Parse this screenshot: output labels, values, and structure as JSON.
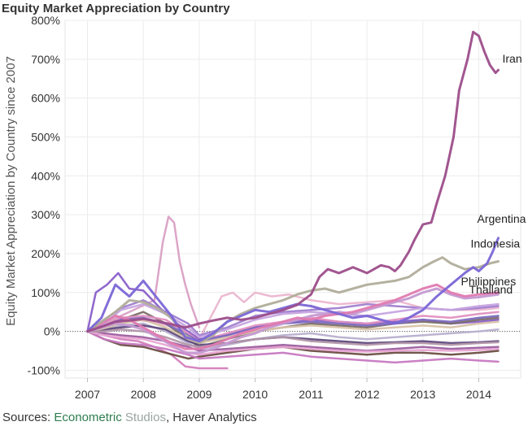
{
  "title": "Equity Market Appreciation by Country",
  "source": {
    "prefix": "Sources: ",
    "part1": "Econometric",
    "part2": " Studios",
    "part3": ", Haver Analytics",
    "colors": {
      "prefix": "#333333",
      "part1": "#2e7d4f",
      "part2": "#9aa6a0",
      "part3": "#333333"
    }
  },
  "chart_data": {
    "type": "line",
    "title": "Equity Market Appreciation by Country",
    "xlabel": "",
    "ylabel": "Equity Market Appreciation by Country since 2007",
    "xlim": [
      2006.6,
      2014.75
    ],
    "ylim": [
      -120,
      800
    ],
    "x_ticks": [
      2007,
      2008,
      2009,
      2010,
      2011,
      2012,
      2013,
      2014
    ],
    "y_ticks": [
      -100,
      0,
      100,
      200,
      300,
      400,
      500,
      600,
      700,
      800
    ],
    "y_tick_labels": [
      "-100%",
      "0%",
      "100%",
      "200%",
      "300%",
      "400%",
      "500%",
      "600%",
      "700%",
      "800%"
    ],
    "grid": true,
    "baseline": 0,
    "series": [
      {
        "name": "Iran",
        "color": "#9c4d8a",
        "x": [
          2007,
          2007.25,
          2007.5,
          2007.75,
          2008,
          2008.25,
          2008.5,
          2008.75,
          2009,
          2009.25,
          2009.5,
          2009.75,
          2010,
          2010.25,
          2010.5,
          2010.75,
          2011,
          2011.15,
          2011.3,
          2011.5,
          2011.75,
          2012,
          2012.25,
          2012.4,
          2012.5,
          2012.6,
          2012.75,
          2012.85,
          2013,
          2013.15,
          2013.25,
          2013.4,
          2013.55,
          2013.65,
          2013.8,
          2013.9,
          2014,
          2014.1,
          2014.2,
          2014.3,
          2014.35
        ],
        "values": [
          0,
          12,
          25,
          28,
          32,
          26,
          18,
          10,
          20,
          28,
          35,
          30,
          35,
          45,
          55,
          68,
          95,
          140,
          160,
          150,
          165,
          150,
          170,
          165,
          155,
          170,
          205,
          235,
          275,
          280,
          330,
          400,
          500,
          620,
          700,
          770,
          760,
          720,
          685,
          665,
          672
        ]
      },
      {
        "name": "Argentina",
        "color": "#7b66d6",
        "x": [
          2007,
          2007.25,
          2007.5,
          2007.75,
          2008,
          2008.25,
          2008.5,
          2008.75,
          2009,
          2009.25,
          2009.5,
          2009.75,
          2010,
          2010.25,
          2010.5,
          2010.75,
          2011,
          2011.25,
          2011.5,
          2011.75,
          2012,
          2012.25,
          2012.5,
          2012.75,
          2013,
          2013.25,
          2013.5,
          2013.75,
          2013.9,
          2014,
          2014.15,
          2014.25,
          2014.35
        ],
        "values": [
          0,
          35,
          120,
          90,
          130,
          85,
          40,
          -15,
          -25,
          -5,
          25,
          40,
          55,
          50,
          60,
          70,
          65,
          55,
          45,
          35,
          40,
          30,
          20,
          35,
          55,
          90,
          120,
          150,
          165,
          155,
          175,
          205,
          240
        ]
      },
      {
        "name": "Indonesia",
        "color": "#b0ad9a",
        "x": [
          2007,
          2007.25,
          2007.5,
          2007.75,
          2008,
          2008.25,
          2008.5,
          2008.75,
          2009,
          2009.25,
          2009.5,
          2009.75,
          2010,
          2010.25,
          2010.5,
          2010.75,
          2011,
          2011.25,
          2011.5,
          2011.75,
          2012,
          2012.25,
          2012.5,
          2012.75,
          2013,
          2013.2,
          2013.35,
          2013.5,
          2013.75,
          2014,
          2014.2,
          2014.35
        ],
        "values": [
          0,
          25,
          50,
          80,
          75,
          60,
          35,
          -10,
          -30,
          -10,
          25,
          45,
          60,
          70,
          80,
          95,
          105,
          110,
          100,
          110,
          120,
          125,
          130,
          140,
          165,
          180,
          190,
          175,
          160,
          165,
          175,
          180
        ]
      },
      {
        "name": "Philippines",
        "color": "#e07ab0",
        "x": [
          2007,
          2007.25,
          2007.5,
          2007.75,
          2008,
          2008.25,
          2008.5,
          2008.75,
          2009,
          2009.25,
          2009.5,
          2009.75,
          2010,
          2010.25,
          2010.5,
          2010.75,
          2011,
          2011.25,
          2011.5,
          2011.75,
          2012,
          2012.25,
          2012.5,
          2012.75,
          2013,
          2013.25,
          2013.5,
          2013.75,
          2014,
          2014.35
        ],
        "values": [
          0,
          20,
          40,
          30,
          10,
          -10,
          -30,
          -45,
          -45,
          -35,
          -20,
          -5,
          5,
          15,
          25,
          35,
          30,
          40,
          45,
          50,
          60,
          70,
          80,
          95,
          110,
          120,
          100,
          90,
          95,
          100
        ]
      },
      {
        "name": "Thailand",
        "color": "#c49ad2",
        "x": [
          2007,
          2007.25,
          2007.5,
          2007.75,
          2008,
          2008.25,
          2008.5,
          2008.75,
          2009,
          2009.25,
          2009.5,
          2009.75,
          2010,
          2010.25,
          2010.5,
          2010.75,
          2011,
          2011.25,
          2011.5,
          2011.75,
          2012,
          2012.25,
          2012.5,
          2012.75,
          2013,
          2013.25,
          2013.5,
          2013.75,
          2014,
          2014.35
        ],
        "values": [
          0,
          10,
          20,
          15,
          5,
          -15,
          -35,
          -55,
          -55,
          -45,
          -30,
          -15,
          -5,
          10,
          20,
          30,
          40,
          45,
          50,
          45,
          55,
          65,
          75,
          85,
          100,
          110,
          95,
          85,
          88,
          95
        ]
      }
    ],
    "other_series": [
      {
        "color": "#d9a0c4",
        "x": [
          2007,
          2007.3,
          2007.6,
          2007.9,
          2008.2,
          2008.35,
          2008.45,
          2008.55,
          2008.65,
          2008.75,
          2008.85,
          2009
        ],
        "values": [
          0,
          20,
          40,
          60,
          80,
          230,
          295,
          280,
          180,
          120,
          70,
          10
        ]
      },
      {
        "color": "#d47fbd",
        "x": [
          2007,
          2007.3,
          2007.6,
          2007.9,
          2008.2,
          2008.5,
          2008.75,
          2009,
          2009.25,
          2009.5
        ],
        "values": [
          0,
          -10,
          -20,
          -25,
          -40,
          -60,
          -90,
          -95,
          -95,
          -95
        ]
      },
      {
        "color": "#ebb6cf",
        "x": [
          2007,
          2007.3,
          2007.6,
          2007.9,
          2008.3,
          2008.7,
          2009,
          2009.4,
          2009.6,
          2009.8,
          2010,
          2010.3,
          2010.6,
          2011,
          2011.5,
          2012,
          2012.5,
          2013,
          2013.5,
          2014,
          2014.35
        ],
        "values": [
          0,
          15,
          25,
          30,
          20,
          5,
          -20,
          90,
          100,
          75,
          100,
          90,
          95,
          80,
          70,
          75,
          80,
          60,
          55,
          55,
          60
        ]
      },
      {
        "color": "#8a5fc9",
        "x": [
          2007,
          2007.15,
          2007.35,
          2007.55,
          2007.75,
          2008,
          2008.3,
          2008.6,
          2009,
          2009.5,
          2010,
          2010.5,
          2011,
          2011.5,
          2012,
          2012.5,
          2013,
          2013.5,
          2014,
          2014.35
        ],
        "values": [
          0,
          100,
          120,
          150,
          110,
          105,
          60,
          20,
          -20,
          -10,
          10,
          20,
          30,
          25,
          20,
          25,
          30,
          20,
          25,
          30
        ]
      },
      {
        "color": "#6b4f45",
        "x": [
          2007,
          2007.3,
          2007.6,
          2008,
          2008.4,
          2008.8,
          2009,
          2009.5,
          2010,
          2010.5,
          2011,
          2011.5,
          2012,
          2012.5,
          2013,
          2013.5,
          2014,
          2014.35
        ],
        "values": [
          0,
          -20,
          -35,
          -40,
          -55,
          -70,
          -65,
          -55,
          -45,
          -40,
          -50,
          -55,
          -60,
          -55,
          -55,
          -60,
          -55,
          -50
        ]
      },
      {
        "color": "#a07fd0",
        "x": [
          2007,
          2007.3,
          2007.6,
          2008,
          2008.4,
          2008.8,
          2009,
          2009.5,
          2010,
          2010.5,
          2011,
          2011.5,
          2012,
          2012.5,
          2013,
          2013.5,
          2014,
          2014.35
        ],
        "values": [
          0,
          30,
          60,
          80,
          50,
          20,
          -10,
          10,
          40,
          50,
          55,
          60,
          70,
          65,
          60,
          55,
          60,
          65
        ]
      },
      {
        "color": "#7a6e68",
        "x": [
          2007,
          2007.3,
          2007.6,
          2008,
          2008.4,
          2008.8,
          2009,
          2009.5,
          2010,
          2010.5,
          2011,
          2011.5,
          2012,
          2012.5,
          2013,
          2013.5,
          2014,
          2014.35
        ],
        "values": [
          0,
          10,
          30,
          50,
          20,
          -20,
          -40,
          -20,
          0,
          10,
          20,
          15,
          10,
          20,
          25,
          20,
          30,
          35
        ]
      },
      {
        "color": "#c779c2",
        "x": [
          2007,
          2007.3,
          2007.6,
          2008,
          2008.4,
          2008.8,
          2009,
          2009.5,
          2010,
          2010.5,
          2011,
          2011.5,
          2012,
          2012.5,
          2013,
          2013.5,
          2014,
          2014.35
        ],
        "values": [
          0,
          -20,
          -30,
          -35,
          -45,
          -60,
          -70,
          -65,
          -60,
          -55,
          -65,
          -70,
          -75,
          -80,
          -75,
          -70,
          -75,
          -78
        ]
      },
      {
        "color": "#b8b0cf",
        "x": [
          2007,
          2007.3,
          2007.6,
          2008,
          2008.4,
          2008.8,
          2009,
          2009.5,
          2010,
          2010.5,
          2011,
          2011.5,
          2012,
          2012.5,
          2013,
          2013.5,
          2014,
          2014.35
        ],
        "values": [
          0,
          5,
          15,
          20,
          0,
          -30,
          -45,
          -35,
          -20,
          -10,
          -5,
          -15,
          -20,
          -15,
          -10,
          -5,
          0,
          5
        ]
      },
      {
        "color": "#e290c0",
        "x": [
          2007,
          2007.3,
          2007.6,
          2008,
          2008.4,
          2008.8,
          2009,
          2009.5,
          2010,
          2010.5,
          2011,
          2011.5,
          2012,
          2012.5,
          2013,
          2013.5,
          2014,
          2014.35
        ],
        "values": [
          0,
          15,
          35,
          40,
          30,
          -5,
          -25,
          -5,
          15,
          25,
          35,
          25,
          20,
          30,
          40,
          35,
          45,
          50
        ]
      },
      {
        "color": "#5e4a7e",
        "x": [
          2007,
          2007.3,
          2007.6,
          2008,
          2008.4,
          2008.8,
          2009,
          2009.5,
          2010,
          2010.5,
          2011,
          2011.5,
          2012,
          2012.5,
          2013,
          2013.5,
          2014,
          2014.35
        ],
        "values": [
          0,
          5,
          10,
          15,
          5,
          -25,
          -35,
          -30,
          -20,
          -15,
          -20,
          -25,
          -30,
          -28,
          -25,
          -30,
          -28,
          -25
        ]
      },
      {
        "color": "#c6a4df",
        "x": [
          2007,
          2007.3,
          2007.6,
          2008,
          2008.4,
          2008.8,
          2009,
          2009.5,
          2010,
          2010.5,
          2011,
          2011.5,
          2012,
          2012.5,
          2013,
          2013.5,
          2014,
          2014.35
        ],
        "values": [
          0,
          20,
          55,
          70,
          45,
          10,
          -15,
          5,
          30,
          45,
          50,
          45,
          40,
          50,
          60,
          55,
          65,
          70
        ]
      },
      {
        "color": "#9c5fa0",
        "x": [
          2007,
          2007.3,
          2007.6,
          2008,
          2008.4,
          2008.8,
          2009,
          2009.5,
          2010,
          2010.5,
          2011,
          2011.5,
          2012,
          2012.5,
          2013,
          2013.5,
          2014,
          2014.35
        ],
        "values": [
          0,
          -5,
          -10,
          -15,
          -25,
          -40,
          -50,
          -45,
          -40,
          -35,
          -40,
          -45,
          -50,
          -45,
          -40,
          -45,
          -42,
          -40
        ]
      },
      {
        "color": "#d8c3a8",
        "x": [
          2007,
          2007.3,
          2007.6,
          2008,
          2008.4,
          2008.8,
          2009,
          2009.5,
          2010,
          2010.5,
          2011,
          2011.5,
          2012,
          2012.5,
          2013,
          2013.5,
          2014,
          2014.35
        ],
        "values": [
          0,
          8,
          20,
          30,
          10,
          -20,
          -30,
          -15,
          0,
          10,
          15,
          10,
          5,
          10,
          15,
          10,
          20,
          25
        ]
      },
      {
        "color": "#e8a6d3",
        "x": [
          2007,
          2007.3,
          2007.6,
          2008,
          2008.4,
          2008.8,
          2009,
          2009.5,
          2010,
          2010.5,
          2011,
          2011.5,
          2012,
          2012.5,
          2013,
          2013.5,
          2014,
          2014.35
        ],
        "values": [
          0,
          -10,
          -15,
          -20,
          -35,
          -55,
          -60,
          -50,
          -45,
          -40,
          -45,
          -50,
          -52,
          -50,
          -48,
          -50,
          -48,
          -45
        ]
      },
      {
        "color": "#7d6cc0",
        "x": [
          2007,
          2007.3,
          2007.6,
          2008,
          2008.4,
          2008.8,
          2009,
          2009.5,
          2010,
          2010.5,
          2011,
          2011.5,
          2012,
          2012.5,
          2013,
          2013.5,
          2014,
          2014.35
        ],
        "values": [
          0,
          15,
          30,
          35,
          20,
          -10,
          -25,
          -10,
          10,
          20,
          25,
          20,
          15,
          20,
          30,
          25,
          35,
          40
        ]
      },
      {
        "color": "#b296a8",
        "x": [
          2007,
          2007.3,
          2007.6,
          2008,
          2008.4,
          2008.8,
          2009,
          2009.5,
          2010,
          2010.5,
          2011,
          2011.5,
          2012,
          2012.5,
          2013,
          2013.5,
          2014,
          2014.35
        ],
        "values": [
          0,
          0,
          5,
          0,
          -15,
          -35,
          -40,
          -30,
          -20,
          -15,
          -25,
          -30,
          -35,
          -30,
          -30,
          -35,
          -30,
          -28
        ]
      }
    ]
  }
}
